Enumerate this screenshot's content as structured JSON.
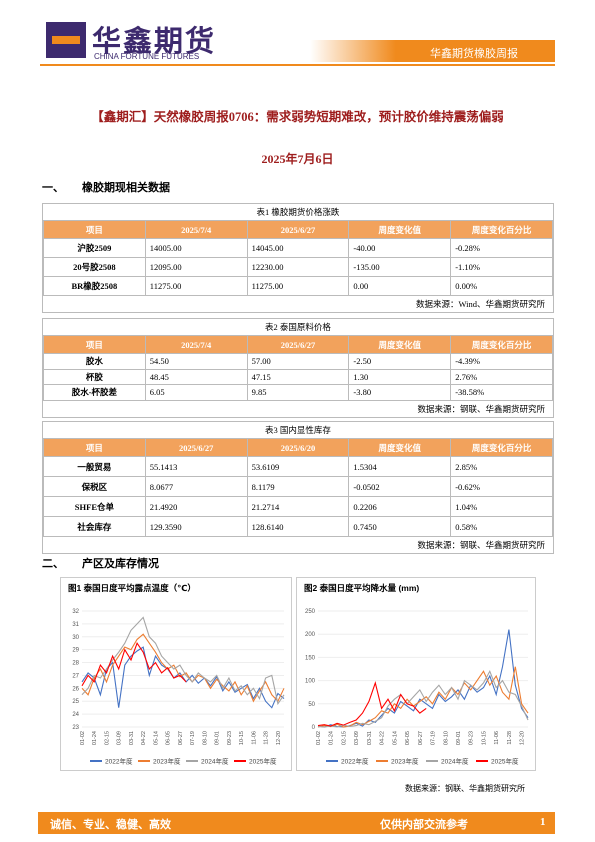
{
  "header": {
    "brand": "华鑫期货",
    "brand_en": "CHINA FORTUNE FUTURES",
    "report": "华鑫期货橡胶周报"
  },
  "title": "【鑫期汇】天然橡胶周报0706：需求弱势短期难改，预计胶价维持震荡偏弱",
  "date": "2025年7月6日",
  "sections": [
    "一、",
    "橡胶期现相关数据",
    "二、",
    "产区及库存情况"
  ],
  "tables": [
    {
      "caption": "表1 橡胶期货价格涨跌",
      "columns": [
        "项目",
        "2025/7/4",
        "2025/6/27",
        "周度变化值",
        "周度变化百分比"
      ],
      "rows": [
        [
          "沪胶2509",
          "14005.00",
          "14045.00",
          "-40.00",
          "-0.28%"
        ],
        [
          "20号胶2508",
          "12095.00",
          "12230.00",
          "-135.00",
          "-1.10%"
        ],
        [
          "BR橡胶2508",
          "11275.00",
          "11275.00",
          "0.00",
          "0.00%"
        ]
      ],
      "source": "数据来源：Wind、华鑫期货研究所"
    },
    {
      "caption": "表2 泰国原料价格",
      "columns": [
        "项目",
        "2025/7/4",
        "2025/6/27",
        "周度变化值",
        "周度变化百分比"
      ],
      "rows": [
        [
          "胶水",
          "54.50",
          "57.00",
          "-2.50",
          "-4.39%"
        ],
        [
          "杯胶",
          "48.45",
          "47.15",
          "1.30",
          "2.76%"
        ],
        [
          "胶水-杯胶差",
          "6.05",
          "9.85",
          "-3.80",
          "-38.58%"
        ]
      ],
      "source": "数据来源：钢联、华鑫期货研究所"
    },
    {
      "caption": "表3 国内显性库存",
      "columns": [
        "项目",
        "2025/6/27",
        "2025/6/20",
        "周度变化值",
        "周度变化百分比"
      ],
      "rows": [
        [
          "一般贸易",
          "55.1413",
          "53.6109",
          "1.5304",
          "2.85%"
        ],
        [
          "保税区",
          "8.0677",
          "8.1179",
          "-0.0502",
          "-0.62%"
        ],
        [
          "SHFE仓单",
          "21.4920",
          "21.2714",
          "0.2206",
          "1.04%"
        ],
        [
          "社会库存",
          "129.3590",
          "128.6140",
          "0.7450",
          "0.58%"
        ]
      ],
      "source": "数据来源：钢联、华鑫期货研究所"
    }
  ],
  "chart_data": [
    {
      "type": "line",
      "title": "图1 泰国日度平均露点温度（℃）",
      "categories": [
        "01-02",
        null,
        "01-24",
        null,
        "02-15",
        null,
        "03-09",
        null,
        "03-31",
        null,
        "04-22",
        null,
        "05-14",
        null,
        "06-05",
        null,
        "06-27",
        null,
        "07-19",
        null,
        "08-10",
        null,
        "09-01",
        null,
        "09-23",
        null,
        "10-15",
        null,
        "11-06",
        null,
        "11-28",
        null,
        "12-20",
        null
      ],
      "ylim": [
        23,
        32
      ],
      "yticks": [
        23,
        24,
        25,
        26,
        27,
        28,
        29,
        30,
        31,
        32
      ],
      "series": [
        {
          "name": "2022年度",
          "color": "#4472c4",
          "values": [
            26.5,
            27.2,
            26.8,
            25.5,
            27.5,
            28.0,
            24.5,
            27.8,
            28.5,
            28.9,
            29.2,
            27.0,
            28.5,
            27.8,
            27.5,
            26.8,
            27.2,
            26.5,
            27.0,
            26.4,
            26.8,
            26.2,
            26.9,
            25.8,
            26.5,
            25.7,
            26.0,
            26.3,
            25.2,
            26.0,
            25.0,
            24.5,
            25.6,
            25.2
          ]
        },
        {
          "name": "2023年度",
          "color": "#ed7d31",
          "values": [
            26.0,
            25.5,
            26.8,
            27.5,
            26.5,
            27.8,
            28.5,
            29.2,
            29.0,
            29.8,
            30.2,
            29.5,
            28.8,
            28.0,
            27.5,
            27.8,
            26.9,
            27.2,
            26.5,
            27.0,
            26.8,
            26.0,
            26.7,
            26.2,
            25.8,
            26.5,
            25.5,
            26.2,
            25.0,
            25.8,
            26.5,
            25.5,
            25.0,
            26.0
          ]
        },
        {
          "name": "2024年度",
          "color": "#a5a5a5",
          "values": [
            25.5,
            26.0,
            27.0,
            26.8,
            27.5,
            28.2,
            28.8,
            29.5,
            30.5,
            31.0,
            31.5,
            30.0,
            29.5,
            28.5,
            28.0,
            27.5,
            27.8,
            27.0,
            26.5,
            27.2,
            26.8,
            26.5,
            27.0,
            26.0,
            26.8,
            25.8,
            26.2,
            25.5,
            26.0,
            25.2,
            26.8,
            27.0,
            24.8,
            25.5
          ]
        },
        {
          "name": "2025年度",
          "color": "#ff0000",
          "values": [
            26.2,
            27.0,
            26.5,
            27.8,
            27.2,
            28.5,
            27.5,
            29.0,
            28.2,
            29.5,
            28.8,
            27.5,
            28.0,
            27.2,
            27.6,
            26.8,
            27.0,
            26.5,
            null,
            null,
            null,
            null,
            null,
            null,
            null,
            null,
            null,
            null,
            null,
            null,
            null,
            null,
            null,
            null
          ]
        }
      ]
    },
    {
      "type": "line",
      "title": "图2 泰国日度平均降水量 (mm)",
      "categories": [
        "01-02",
        null,
        "01-24",
        null,
        "02-15",
        null,
        "03-09",
        null,
        "03-31",
        null,
        "04-22",
        null,
        "05-14",
        null,
        "06-05",
        null,
        "06-27",
        null,
        "07-19",
        null,
        "08-10",
        null,
        "09-01",
        null,
        "09-23",
        null,
        "10-15",
        null,
        "11-06",
        null,
        "11-28",
        null,
        "12-20",
        null
      ],
      "ylim": [
        0,
        250
      ],
      "yticks": [
        0,
        50,
        100,
        150,
        200,
        250
      ],
      "series": [
        {
          "name": "2022年度",
          "color": "#4472c4",
          "values": [
            2,
            0,
            5,
            1,
            0,
            3,
            8,
            2,
            15,
            10,
            25,
            40,
            30,
            55,
            45,
            35,
            60,
            50,
            40,
            70,
            55,
            65,
            80,
            60,
            90,
            75,
            85,
            110,
            70,
            130,
            210,
            90,
            40,
            20
          ]
        },
        {
          "name": "2023年度",
          "color": "#ed7d31",
          "values": [
            0,
            3,
            1,
            6,
            0,
            2,
            10,
            5,
            12,
            20,
            35,
            30,
            50,
            40,
            60,
            45,
            55,
            65,
            50,
            75,
            60,
            85,
            70,
            95,
            80,
            100,
            120,
            90,
            110,
            75,
            60,
            130,
            50,
            30
          ]
        },
        {
          "name": "2024年度",
          "color": "#a5a5a5",
          "values": [
            1,
            0,
            2,
            0,
            4,
            1,
            3,
            8,
            5,
            12,
            20,
            45,
            60,
            70,
            50,
            65,
            80,
            55,
            75,
            90,
            70,
            85,
            60,
            100,
            90,
            80,
            95,
            120,
            85,
            100,
            75,
            70,
            45,
            15
          ]
        },
        {
          "name": "2025年度",
          "color": "#ff0000",
          "values": [
            3,
            5,
            2,
            8,
            4,
            10,
            15,
            30,
            55,
            95,
            40,
            60,
            35,
            70,
            50,
            45,
            30,
            40,
            null,
            null,
            null,
            null,
            null,
            null,
            null,
            null,
            null,
            null,
            null,
            null,
            null,
            null,
            null,
            null
          ]
        }
      ]
    }
  ],
  "chart_source": "数据来源：钢联、华鑫期货研究所",
  "footer": {
    "slogan": "诚信、专业、稳健、高效",
    "note": "仅供内部交流参考",
    "page": "1"
  }
}
